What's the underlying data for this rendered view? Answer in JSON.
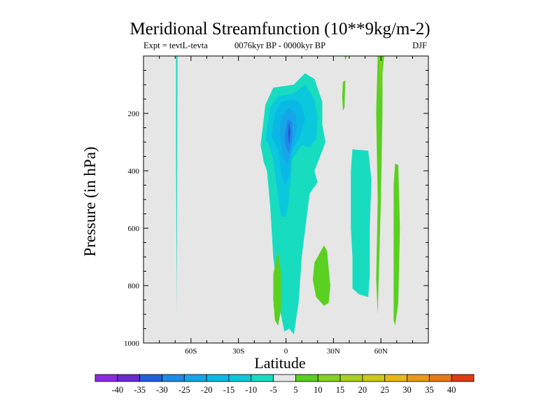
{
  "chart_data": {
    "type": "contour",
    "title": "Meridional Streamfunction (10**9kg/m-2)",
    "subtitle_left": "Expt = tevtL-tevta",
    "subtitle_center": "0076kyr BP - 0000kyr BP",
    "subtitle_right": "DJF",
    "xlabel": "Latitude",
    "ylabel": "Pressure (in hPa)",
    "xlim": [
      -90,
      90
    ],
    "ylim": [
      1000,
      0
    ],
    "x_ticks": [
      {
        "value": -60,
        "label": "60S"
      },
      {
        "value": -30,
        "label": "30S"
      },
      {
        "value": 0,
        "label": "0"
      },
      {
        "value": 30,
        "label": "30N"
      },
      {
        "value": 60,
        "label": "60N"
      }
    ],
    "y_ticks": [
      {
        "value": 200,
        "label": "200"
      },
      {
        "value": 400,
        "label": "400"
      },
      {
        "value": 600,
        "label": "600"
      },
      {
        "value": 800,
        "label": "800"
      },
      {
        "value": 1000,
        "label": "1000"
      }
    ],
    "background_color": "#e6e6e6",
    "contour_levels": [
      -40,
      -35,
      -30,
      -25,
      -20,
      -15,
      -10,
      -5,
      5,
      10,
      15,
      20,
      25,
      30,
      35,
      40
    ],
    "colorbar_colors": [
      "#8a2be2",
      "#6a2ad0",
      "#2060dc",
      "#1e8ae6",
      "#16a6e8",
      "#0ab8e6",
      "#0bc8dc",
      "#18dcc0",
      "#e6e6e6",
      "#5ad020",
      "#84d020",
      "#aad020",
      "#ccc818",
      "#e6b818",
      "#e89818",
      "#e87818",
      "#e03a14"
    ],
    "colorbar_labels": [
      "-40",
      "-35",
      "-30",
      "-25",
      "-20",
      "-15",
      "-10",
      "-5",
      "5",
      "10",
      "15",
      "20",
      "25",
      "30",
      "35",
      "40"
    ],
    "regions": [
      {
        "level": -10,
        "color": "#18dcc0",
        "points": [
          [
            -69.5,
            0
          ],
          [
            -68.5,
            0
          ],
          [
            -69,
            900
          ],
          [
            -69.5,
            300
          ]
        ]
      },
      {
        "level": -10,
        "color": "#18dcc0",
        "points": [
          [
            -16,
            310
          ],
          [
            -13,
            170
          ],
          [
            -8,
            110
          ],
          [
            5,
            100
          ],
          [
            12,
            60
          ],
          [
            18,
            80
          ],
          [
            23,
            160
          ],
          [
            23,
            240
          ],
          [
            25,
            300
          ],
          [
            23,
            330
          ],
          [
            18,
            400
          ],
          [
            20,
            440
          ],
          [
            15,
            480
          ],
          [
            10,
            700
          ],
          [
            8,
            860
          ],
          [
            5,
            970
          ],
          [
            2,
            950
          ],
          [
            -1,
            960
          ],
          [
            -5,
            850
          ],
          [
            -8,
            700
          ],
          [
            -10,
            520
          ],
          [
            -12,
            400
          ],
          [
            -14,
            370
          ]
        ]
      },
      {
        "level": -15,
        "color": "#0bc8dc",
        "points": [
          [
            -13,
            290
          ],
          [
            -10,
            180
          ],
          [
            -5,
            140
          ],
          [
            5,
            130
          ],
          [
            12,
            100
          ],
          [
            18,
            150
          ],
          [
            20,
            220
          ],
          [
            19,
            290
          ],
          [
            15,
            320
          ],
          [
            10,
            310
          ],
          [
            4,
            360
          ],
          [
            2,
            500
          ],
          [
            0,
            560
          ],
          [
            -3,
            560
          ],
          [
            -6,
            450
          ],
          [
            -8,
            360
          ],
          [
            -11,
            310
          ]
        ]
      },
      {
        "level": -20,
        "color": "#0ab8e6",
        "points": [
          [
            -9,
            280
          ],
          [
            -7,
            200
          ],
          [
            -3,
            160
          ],
          [
            5,
            150
          ],
          [
            10,
            170
          ],
          [
            12,
            220
          ],
          [
            9,
            280
          ],
          [
            4,
            330
          ],
          [
            2,
            420
          ],
          [
            -1,
            450
          ],
          [
            -3,
            400
          ],
          [
            -5,
            330
          ]
        ]
      },
      {
        "level": -25,
        "color": "#16a6e8",
        "points": [
          [
            -4,
            270
          ],
          [
            -3,
            210
          ],
          [
            2,
            180
          ],
          [
            6,
            200
          ],
          [
            7,
            250
          ],
          [
            4,
            320
          ],
          [
            1,
            380
          ],
          [
            -2,
            350
          ]
        ]
      },
      {
        "level": -30,
        "color": "#1e8ae6",
        "points": [
          [
            -1,
            280
          ],
          [
            1,
            220
          ],
          [
            4,
            230
          ],
          [
            4,
            290
          ],
          [
            2,
            340
          ],
          [
            0,
            320
          ]
        ]
      },
      {
        "level": -35,
        "color": "#2060dc",
        "points": [
          [
            1,
            270
          ],
          [
            2,
            230
          ],
          [
            3,
            260
          ],
          [
            2,
            310
          ]
        ]
      },
      {
        "level": -10,
        "color": "#18dcc0",
        "points": [
          [
            42,
            325
          ],
          [
            52,
            330
          ],
          [
            54,
            430
          ],
          [
            53,
            600
          ],
          [
            53,
            760
          ],
          [
            52,
            840
          ],
          [
            46,
            830
          ],
          [
            42,
            810
          ],
          [
            42,
            700
          ],
          [
            41,
            600
          ],
          [
            41,
            400
          ]
        ]
      },
      {
        "level": 5,
        "color": "#5ad020",
        "points": [
          [
            -5,
            680
          ],
          [
            -3,
            760
          ],
          [
            -3,
            880
          ],
          [
            -5,
            940
          ],
          [
            -7,
            920
          ],
          [
            -8,
            850
          ],
          [
            -8,
            760
          ]
        ]
      },
      {
        "level": 5,
        "color": "#5ad020",
        "points": [
          [
            26,
            680
          ],
          [
            28,
            800
          ],
          [
            27,
            860
          ],
          [
            24,
            870
          ],
          [
            19,
            840
          ],
          [
            17,
            780
          ],
          [
            18,
            720
          ],
          [
            24,
            660
          ]
        ]
      },
      {
        "level": 5,
        "color": "#5ad020",
        "points": [
          [
            58,
            0
          ],
          [
            62,
            0
          ],
          [
            61,
            60
          ],
          [
            61,
            200
          ],
          [
            60,
            500
          ],
          [
            59,
            700
          ],
          [
            58,
            900
          ],
          [
            57,
            780
          ],
          [
            58,
            500
          ],
          [
            57,
            200
          ]
        ]
      },
      {
        "level": 5,
        "color": "#5ad020",
        "points": [
          [
            69,
            375
          ],
          [
            71,
            380
          ],
          [
            72,
            600
          ],
          [
            71,
            860
          ],
          [
            69,
            940
          ],
          [
            68,
            920
          ],
          [
            68,
            700
          ],
          [
            68,
            450
          ]
        ]
      },
      {
        "level": 5,
        "color": "#5ad020",
        "points": [
          [
            36,
            90
          ],
          [
            37.5,
            85
          ],
          [
            37,
            180
          ],
          [
            36,
            190
          ],
          [
            35.5,
            140
          ]
        ]
      },
      {
        "level": 5,
        "color": "#5ad020",
        "points": [
          [
            37,
            0
          ],
          [
            38.5,
            0
          ],
          [
            37.5,
            15
          ]
        ]
      },
      {
        "level": 10,
        "color": "#84d020",
        "points": [
          [
            59,
            0
          ],
          [
            60.5,
            0
          ],
          [
            60,
            80
          ],
          [
            59.5,
            140
          ]
        ]
      }
    ]
  }
}
